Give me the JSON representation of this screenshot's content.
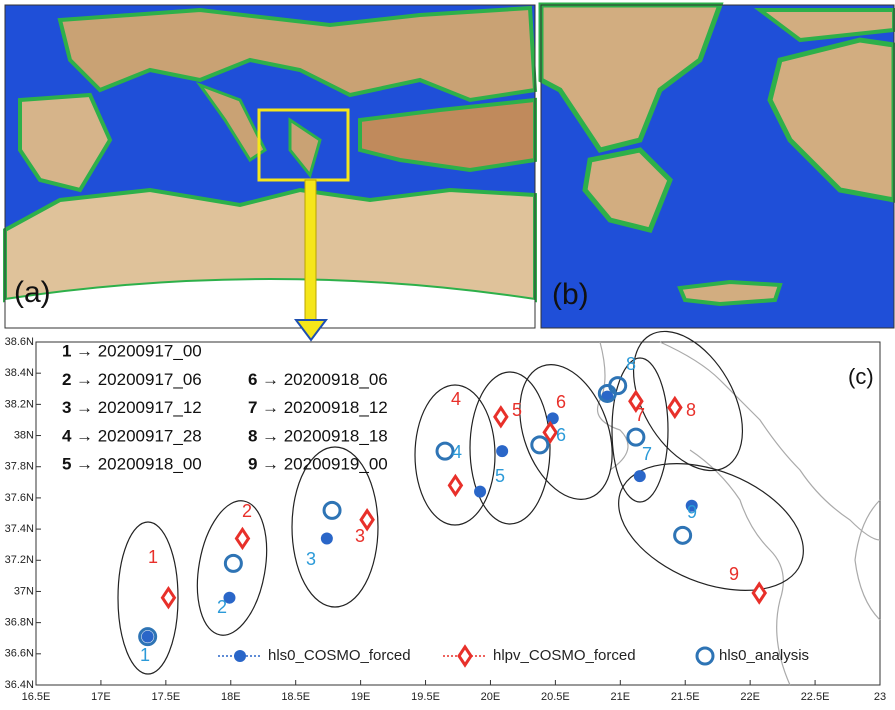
{
  "panel_a_label": "(a)",
  "panel_b_label": "(b)",
  "chart_data": {
    "type": "scatter",
    "panel_label": "(c)",
    "xlim": [
      16.5,
      23
    ],
    "ylim": [
      36.4,
      38.6
    ],
    "xticks": [
      {
        "value": 16.5,
        "label": "16.5E"
      },
      {
        "value": 17,
        "label": "17E"
      },
      {
        "value": 17.5,
        "label": "17.5E"
      },
      {
        "value": 18,
        "label": "18E"
      },
      {
        "value": 18.5,
        "label": "18.5E"
      },
      {
        "value": 19,
        "label": "19E"
      },
      {
        "value": 19.5,
        "label": "19.5E"
      },
      {
        "value": 20,
        "label": "20E"
      },
      {
        "value": 20.5,
        "label": "20.5E"
      },
      {
        "value": 21,
        "label": "21E"
      },
      {
        "value": 21.5,
        "label": "21.5E"
      },
      {
        "value": 22,
        "label": "22E"
      },
      {
        "value": 22.5,
        "label": "22.5E"
      },
      23
    ],
    "yticks": [
      {
        "value": 36.4,
        "label": "36.4N"
      },
      {
        "value": 36.6,
        "label": "36.6N"
      },
      {
        "value": 36.8,
        "label": "36.8N"
      },
      {
        "value": 37,
        "label": "37N"
      },
      {
        "value": 37.2,
        "label": "37.2N"
      },
      {
        "value": 37.4,
        "label": "37.4N"
      },
      {
        "value": 37.6,
        "label": "37.6N"
      },
      {
        "value": 37.8,
        "label": "37.8N"
      },
      {
        "value": 38,
        "label": "38N"
      },
      {
        "value": 38.2,
        "label": "38.2N"
      },
      {
        "value": 38.4,
        "label": "38.4N"
      },
      {
        "value": 38.6,
        "label": "38.6N"
      }
    ],
    "key": [
      {
        "number": "1",
        "text": "→ 20200917_00"
      },
      {
        "number": "2",
        "text": "→ 20200917_06"
      },
      {
        "number": "3",
        "text": "→ 20200917_12"
      },
      {
        "number": "4",
        "text": "→ 20200917_28"
      },
      {
        "number": "5",
        "text": "→ 20200918_00"
      },
      {
        "number": "6",
        "text": "→ 20200918_06"
      },
      {
        "number": "7",
        "text": "→ 20200918_12"
      },
      {
        "number": "8",
        "text": "→ 20200918_18"
      },
      {
        "number": "9",
        "text": "→ 20200919_00"
      }
    ],
    "series": [
      {
        "name": "hls0_COSMO_forced",
        "marker": "dot",
        "color": "#2a66c8",
        "x": [
          17.36,
          17.99,
          18.74,
          19.92,
          20.09,
          20.48,
          21.15,
          20.9,
          21.55
        ],
        "y": [
          36.71,
          36.96,
          37.34,
          37.64,
          37.9,
          38.11,
          37.74,
          38.25,
          37.55
        ]
      },
      {
        "name": "hlpv_COSMO_forced",
        "marker": "diamond",
        "color": "#e8302a",
        "x": [
          17.52,
          18.09,
          19.05,
          19.73,
          20.08,
          20.46,
          21.12,
          21.42,
          22.07
        ],
        "y": [
          36.96,
          37.34,
          37.46,
          37.68,
          38.12,
          38.02,
          38.22,
          38.18,
          36.99
        ],
        "labels": [
          "1",
          "2",
          "3",
          "4",
          "5",
          "6",
          "7",
          "8",
          "9"
        ]
      },
      {
        "name": "hls0_analysis",
        "marker": "circle",
        "color": "#2e74b5",
        "x": [
          17.36,
          18.02,
          18.78,
          19.65,
          20.38,
          20.9,
          21.12,
          20.98,
          21.48
        ],
        "y": [
          36.71,
          37.18,
          37.52,
          37.9,
          37.94,
          38.27,
          37.99,
          38.32,
          37.36
        ],
        "labels": [
          "1",
          "2",
          "3",
          "4",
          "5",
          "6",
          "7",
          "8",
          "9"
        ]
      }
    ]
  }
}
